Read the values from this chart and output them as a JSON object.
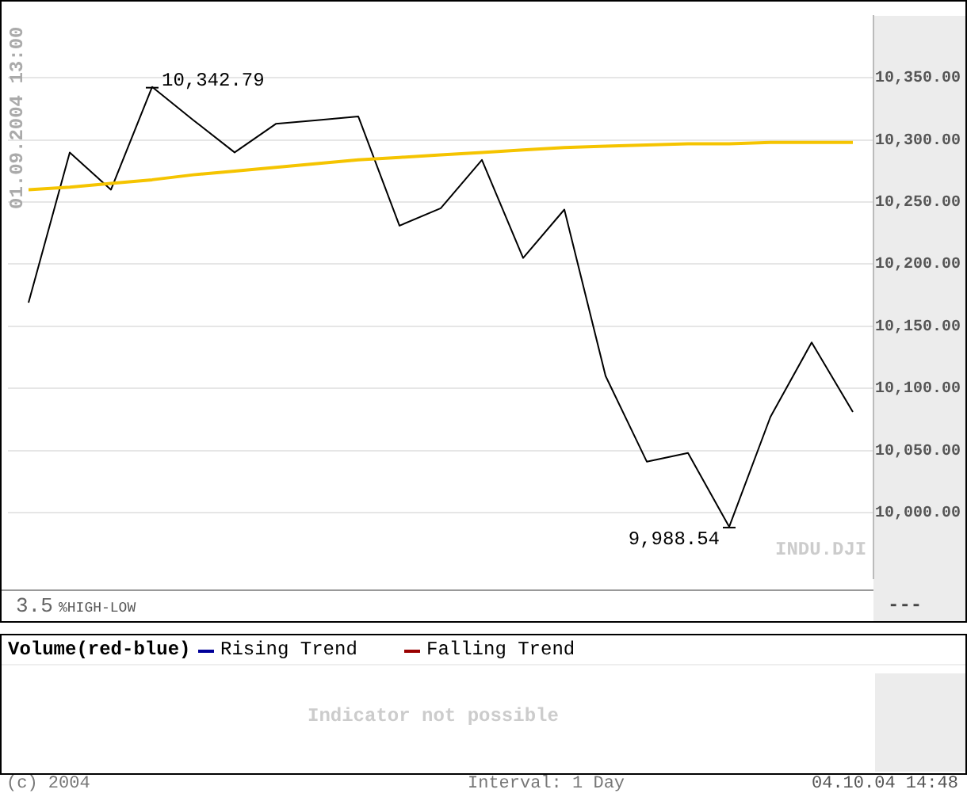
{
  "chart_data": {
    "type": "line",
    "categories": [
      null,
      null,
      null,
      null,
      null,
      null,
      null,
      null,
      null,
      null,
      null,
      null,
      null,
      null,
      null,
      null,
      null,
      null,
      null,
      null,
      null
    ],
    "series": [
      {
        "color": "#000000",
        "values": [
          10169,
          10290,
          10260,
          10342.79,
          10316,
          10290,
          10313,
          10316,
          10319,
          10231,
          10245,
          10284,
          10205,
          10244,
          10110,
          10041,
          10048,
          9988.54,
          10077,
          10137,
          10081
        ],
        "value_labels": [
          null,
          null,
          null,
          "10,342.79",
          null,
          null,
          null,
          null,
          null,
          null,
          null,
          null,
          null,
          null,
          null,
          null,
          null,
          "9,988.54",
          null,
          null,
          null
        ]
      },
      {
        "color": "#f5c400",
        "values": [
          10260,
          10262,
          10265,
          10268,
          10272,
          10275,
          10278,
          10281,
          10284,
          10286,
          10288,
          10290,
          10292,
          10294,
          10295,
          10296,
          10297,
          10297,
          10298,
          10298,
          10298
        ]
      }
    ],
    "ylim": [
      9947,
      10400
    ],
    "yticks": [
      {
        "value": 10000,
        "label": "10,000.00"
      },
      {
        "value": 10050,
        "label": "10,050.00"
      },
      {
        "value": 10100,
        "label": "10,100.00"
      },
      {
        "value": 10150,
        "label": "10,150.00"
      },
      {
        "value": 10200,
        "label": "10,200.00"
      },
      {
        "value": 10250,
        "label": "10,250.00"
      },
      {
        "value": 10300,
        "label": "10,300.00"
      },
      {
        "value": 10350,
        "label": "10,350.00"
      }
    ],
    "tick_labels": "y",
    "grid": "y",
    "legend": false,
    "marker": "none",
    "line_style": "solid",
    "annotations": [
      "01.09.2004 13:00",
      "INDU.DJI",
      "3.5",
      "%HIGH-LOW",
      "---",
      "Volume(red-blue)",
      "Rising Trend",
      "Falling Trend",
      "Indicator not possible",
      "(c) 2004",
      "Interval: 1 Day",
      "04.10.04 14:48"
    ]
  }
}
